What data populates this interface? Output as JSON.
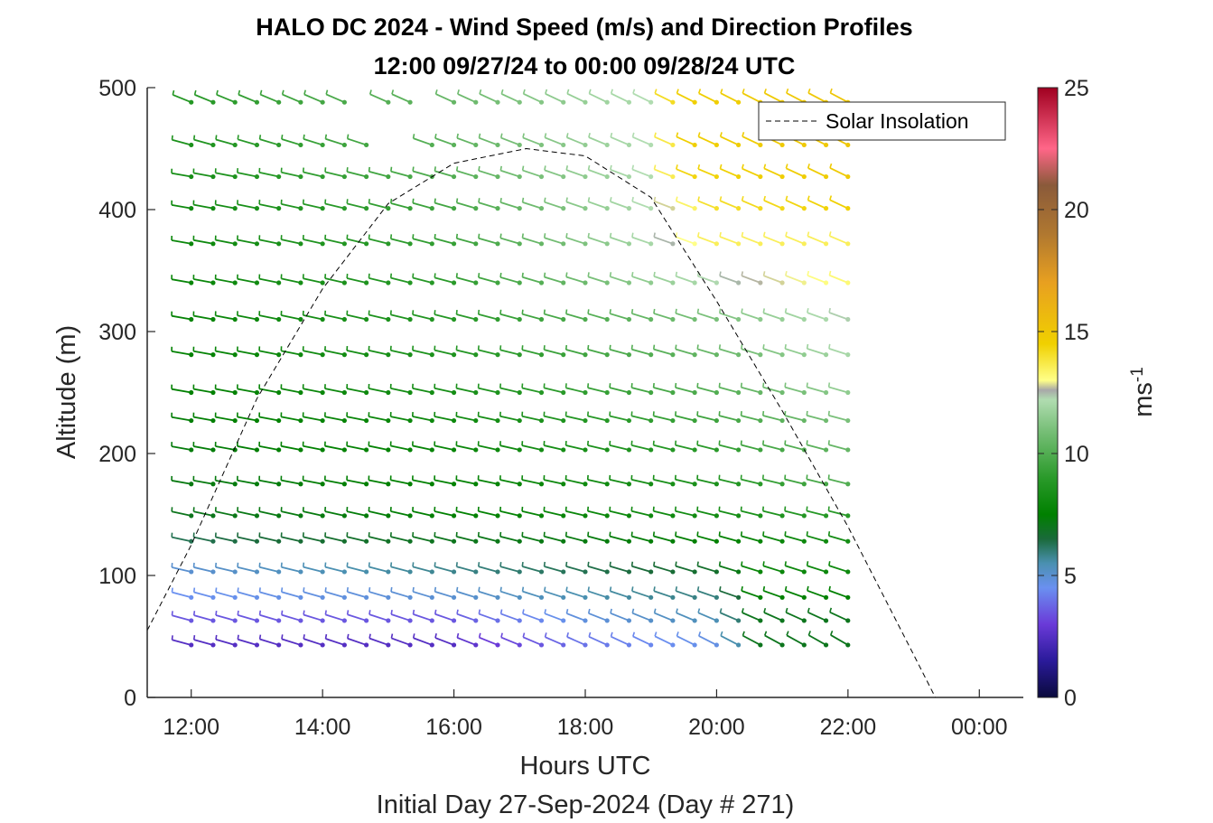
{
  "chart_data": {
    "type": "wind-barb-profile",
    "title": "HALO DC 2024 - Wind Speed (m/s) and Direction Profiles",
    "subtitle": "12:00 09/27/24 to 00:00 09/28/24  UTC",
    "xlabel": "Hours UTC",
    "x_footer": "Initial Day 27-Sep-2024 (Day # 271)",
    "ylabel": "Altitude (m)",
    "xlim_hours": [
      11.33,
      24.67
    ],
    "ylim": [
      0,
      500
    ],
    "x_ticks": [
      {
        "value": 12,
        "label": "12:00"
      },
      {
        "value": 14,
        "label": "14:00"
      },
      {
        "value": 16,
        "label": "16:00"
      },
      {
        "value": 18,
        "label": "18:00"
      },
      {
        "value": 20,
        "label": "20:00"
      },
      {
        "value": 22,
        "label": "22:00"
      },
      {
        "value": 24,
        "label": "00:00"
      }
    ],
    "y_ticks": [
      0,
      100,
      200,
      300,
      400,
      500
    ],
    "colorbar": {
      "label": "ms",
      "label_exponent": "-1",
      "range": [
        0,
        25
      ],
      "ticks": [
        0,
        5,
        10,
        15,
        20,
        25
      ],
      "stops": [
        {
          "v": 0,
          "c": "#0a0a3c"
        },
        {
          "v": 1.5,
          "c": "#2a1a9a"
        },
        {
          "v": 3,
          "c": "#6a3ad8"
        },
        {
          "v": 4.5,
          "c": "#6a90f0"
        },
        {
          "v": 5.5,
          "c": "#4a90b0"
        },
        {
          "v": 6.5,
          "c": "#1a6a3a"
        },
        {
          "v": 7.5,
          "c": "#008000"
        },
        {
          "v": 9,
          "c": "#2a9a2a"
        },
        {
          "v": 11,
          "c": "#7ac07a"
        },
        {
          "v": 12.2,
          "c": "#b0dcb0"
        },
        {
          "v": 12.6,
          "c": "#a8a8a8"
        },
        {
          "v": 13,
          "c": "#ffff88"
        },
        {
          "v": 14.5,
          "c": "#f0d000"
        },
        {
          "v": 17,
          "c": "#e8a020"
        },
        {
          "v": 19,
          "c": "#b07830"
        },
        {
          "v": 21,
          "c": "#8a5a3a"
        },
        {
          "v": 22.5,
          "c": "#ff6688"
        },
        {
          "v": 25,
          "c": "#a00020"
        }
      ]
    },
    "legend": {
      "position": "top-right",
      "entries": [
        {
          "name": "Solar Insolation",
          "style": "dashed"
        }
      ]
    },
    "solar_insolation": [
      {
        "x": 11.33,
        "y": 55
      },
      {
        "x": 12.0,
        "y": 125
      },
      {
        "x": 13.0,
        "y": 245
      },
      {
        "x": 14.0,
        "y": 335
      },
      {
        "x": 15.0,
        "y": 405
      },
      {
        "x": 16.0,
        "y": 438
      },
      {
        "x": 17.1,
        "y": 450
      },
      {
        "x": 18.0,
        "y": 444
      },
      {
        "x": 19.0,
        "y": 410
      },
      {
        "x": 20.0,
        "y": 325
      },
      {
        "x": 21.0,
        "y": 235
      },
      {
        "x": 22.0,
        "y": 140
      },
      {
        "x": 23.0,
        "y": 35
      },
      {
        "x": 23.33,
        "y": 0
      },
      {
        "x": 24.55,
        "y": 0
      }
    ],
    "wind_times": {
      "start": 12.0,
      "end": 22.0,
      "step": 0.3333
    },
    "wind_altitudes": [
      43,
      63,
      82,
      103,
      128,
      149,
      175,
      203,
      227,
      250,
      281,
      310,
      340,
      372,
      401,
      427,
      453,
      488
    ],
    "wind_levels": [
      {
        "alt": 43,
        "profile": [
          [
            12,
            2.5
          ],
          [
            16,
            2.5
          ],
          [
            18,
            4.0
          ],
          [
            20.3,
            4.8
          ],
          [
            20.4,
            7.0
          ],
          [
            22,
            7.0
          ]
        ],
        "dir_start": 285,
        "dir_end": 300
      },
      {
        "alt": 63,
        "profile": [
          [
            12,
            3.5
          ],
          [
            16,
            3.5
          ],
          [
            18,
            4.8
          ],
          [
            20.3,
            5.5
          ],
          [
            20.4,
            7.0
          ],
          [
            22,
            7.0
          ]
        ],
        "dir_start": 285,
        "dir_end": 295
      },
      {
        "alt": 82,
        "profile": [
          [
            12,
            4.5
          ],
          [
            16,
            5.0
          ],
          [
            18,
            5.5
          ],
          [
            20.3,
            6.0
          ],
          [
            20.4,
            7.5
          ],
          [
            22,
            7.5
          ]
        ],
        "dir_start": 285,
        "dir_end": 290
      },
      {
        "alt": 103,
        "profile": [
          [
            12,
            5.0
          ],
          [
            16,
            5.8
          ],
          [
            18,
            6.3
          ],
          [
            20.3,
            6.8
          ],
          [
            20.4,
            7.8
          ],
          [
            22,
            8.0
          ]
        ],
        "dir_start": 283,
        "dir_end": 288
      },
      {
        "alt": 128,
        "profile": [
          [
            12,
            6.3
          ],
          [
            16,
            7.0
          ],
          [
            20,
            7.5
          ],
          [
            22,
            8.2
          ]
        ],
        "dir_start": 282,
        "dir_end": 286
      },
      {
        "alt": 149,
        "profile": [
          [
            12,
            7.0
          ],
          [
            16,
            7.5
          ],
          [
            20,
            8.2
          ],
          [
            22,
            9.0
          ]
        ],
        "dir_start": 282,
        "dir_end": 284
      },
      {
        "alt": 175,
        "profile": [
          [
            12,
            7.2
          ],
          [
            16,
            7.6
          ],
          [
            20,
            8.5
          ],
          [
            22,
            10.0
          ]
        ],
        "dir_start": 280,
        "dir_end": 284
      },
      {
        "alt": 203,
        "profile": [
          [
            12,
            7.3
          ],
          [
            16,
            7.8
          ],
          [
            20,
            9.0
          ],
          [
            22,
            10.5
          ]
        ],
        "dir_start": 280,
        "dir_end": 285
      },
      {
        "alt": 227,
        "profile": [
          [
            12,
            7.4
          ],
          [
            16,
            8.0
          ],
          [
            20,
            9.5
          ],
          [
            22,
            11.0
          ]
        ],
        "dir_start": 280,
        "dir_end": 285
      },
      {
        "alt": 250,
        "profile": [
          [
            12,
            7.5
          ],
          [
            16,
            8.3
          ],
          [
            20,
            10.0
          ],
          [
            22,
            11.5
          ]
        ],
        "dir_start": 280,
        "dir_end": 286
      },
      {
        "alt": 281,
        "profile": [
          [
            12,
            7.6
          ],
          [
            16,
            8.6
          ],
          [
            20,
            10.5
          ],
          [
            22,
            12.0
          ]
        ],
        "dir_start": 280,
        "dir_end": 288
      },
      {
        "alt": 310,
        "profile": [
          [
            12,
            7.7
          ],
          [
            16,
            8.8
          ],
          [
            20,
            11.0
          ],
          [
            22,
            12.3
          ]
        ],
        "dir_start": 280,
        "dir_end": 290
      },
      {
        "alt": 340,
        "profile": [
          [
            12,
            7.8
          ],
          [
            16,
            9.0
          ],
          [
            19,
            11.5
          ],
          [
            20.5,
            12.6
          ],
          [
            22,
            13.2
          ]
        ],
        "dir_start": 280,
        "dir_end": 292
      },
      {
        "alt": 372,
        "profile": [
          [
            12,
            7.9
          ],
          [
            16,
            9.3
          ],
          [
            19,
            12.0
          ],
          [
            20,
            13.5
          ],
          [
            22,
            13.5
          ]
        ],
        "dir_start": 280,
        "dir_end": 293
      },
      {
        "alt": 401,
        "profile": [
          [
            12,
            8.0
          ],
          [
            16,
            9.6
          ],
          [
            19,
            12.2
          ],
          [
            20,
            14.0
          ],
          [
            22,
            14.5
          ]
        ],
        "dir_start": 280,
        "dir_end": 295
      },
      {
        "alt": 427,
        "profile": [
          [
            12,
            8.3
          ],
          [
            16,
            10.0
          ],
          [
            19,
            12.2
          ],
          [
            19.5,
            14.3
          ],
          [
            22,
            14.8
          ]
        ],
        "dir_start": 280,
        "dir_end": 296
      },
      {
        "alt": 453,
        "profile": [
          [
            12,
            8.5
          ],
          [
            16,
            10.2
          ],
          [
            19,
            12.2
          ],
          [
            19.5,
            14.5
          ],
          [
            22,
            15.0
          ]
        ],
        "dir_start": 285,
        "dir_end": 297
      },
      {
        "alt": 488,
        "profile": [
          [
            12,
            8.8
          ],
          [
            16,
            10.5
          ],
          [
            19,
            12.2
          ],
          [
            19.4,
            14.5
          ],
          [
            22,
            15.0
          ]
        ],
        "dir_start": 292,
        "dir_end": 298
      }
    ],
    "wind_gaps": [
      {
        "alt": 453,
        "from": 14.8,
        "to": 15.6
      },
      {
        "alt": 488,
        "from": 14.4,
        "to": 14.9
      },
      {
        "alt": 488,
        "from": 15.4,
        "to": 15.9
      }
    ]
  }
}
